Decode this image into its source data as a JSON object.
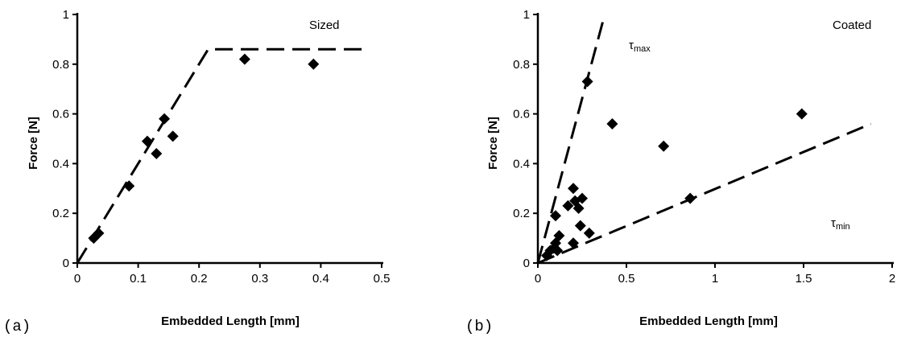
{
  "chart_data": [
    {
      "type": "scatter",
      "panel_label": "(a)",
      "annotation": "Sized",
      "xlabel": "Embedded Length [mm]",
      "ylabel": "Force [N]",
      "xlim": [
        0,
        0.5
      ],
      "ylim": [
        0,
        1
      ],
      "xticks": [
        "0",
        "0.1",
        "0.2",
        "0.3",
        "0.4",
        "0.5"
      ],
      "yticks": [
        "0",
        "0.2",
        "0.4",
        "0.6",
        "0.8",
        "1"
      ],
      "grid": false,
      "points": [
        {
          "x": 0.027,
          "y": 0.1
        },
        {
          "x": 0.035,
          "y": 0.12
        },
        {
          "x": 0.085,
          "y": 0.31
        },
        {
          "x": 0.115,
          "y": 0.49
        },
        {
          "x": 0.13,
          "y": 0.44
        },
        {
          "x": 0.143,
          "y": 0.58
        },
        {
          "x": 0.157,
          "y": 0.51
        },
        {
          "x": 0.275,
          "y": 0.82
        },
        {
          "x": 0.388,
          "y": 0.8
        }
      ],
      "fit_lines": [
        {
          "points": [
            [
              0.0,
              0.0
            ],
            [
              0.215,
              0.86
            ],
            [
              0.475,
              0.86
            ]
          ]
        }
      ]
    },
    {
      "type": "scatter",
      "panel_label": "(b)",
      "annotation": "Coated",
      "xlabel": "Embedded Length [mm]",
      "ylabel": "Force [N]",
      "xlim": [
        0,
        2
      ],
      "ylim": [
        0,
        1
      ],
      "xticks": [
        "0",
        "0.5",
        "1",
        "1.5",
        "2"
      ],
      "yticks": [
        "0",
        "0.2",
        "0.4",
        "0.6",
        "0.8",
        "1"
      ],
      "grid": false,
      "points": [
        {
          "x": 0.05,
          "y": 0.03
        },
        {
          "x": 0.07,
          "y": 0.05
        },
        {
          "x": 0.09,
          "y": 0.06
        },
        {
          "x": 0.1,
          "y": 0.08
        },
        {
          "x": 0.11,
          "y": 0.05
        },
        {
          "x": 0.12,
          "y": 0.11
        },
        {
          "x": 0.1,
          "y": 0.19
        },
        {
          "x": 0.17,
          "y": 0.23
        },
        {
          "x": 0.2,
          "y": 0.3
        },
        {
          "x": 0.21,
          "y": 0.25
        },
        {
          "x": 0.23,
          "y": 0.22
        },
        {
          "x": 0.25,
          "y": 0.26
        },
        {
          "x": 0.2,
          "y": 0.08
        },
        {
          "x": 0.24,
          "y": 0.15
        },
        {
          "x": 0.29,
          "y": 0.12
        },
        {
          "x": 0.28,
          "y": 0.73
        },
        {
          "x": 0.42,
          "y": 0.56
        },
        {
          "x": 0.71,
          "y": 0.47
        },
        {
          "x": 0.86,
          "y": 0.26
        },
        {
          "x": 1.49,
          "y": 0.6
        }
      ],
      "fit_lines": [
        {
          "label": "τmax",
          "points": [
            [
              0.0,
              0.0
            ],
            [
              0.37,
              0.98
            ]
          ]
        },
        {
          "label": "τmin",
          "points": [
            [
              0.0,
              0.0
            ],
            [
              1.88,
              0.56
            ]
          ]
        }
      ],
      "line_labels": [
        {
          "base": "τ",
          "sub": "max"
        },
        {
          "base": "τ",
          "sub": "min"
        }
      ]
    }
  ]
}
